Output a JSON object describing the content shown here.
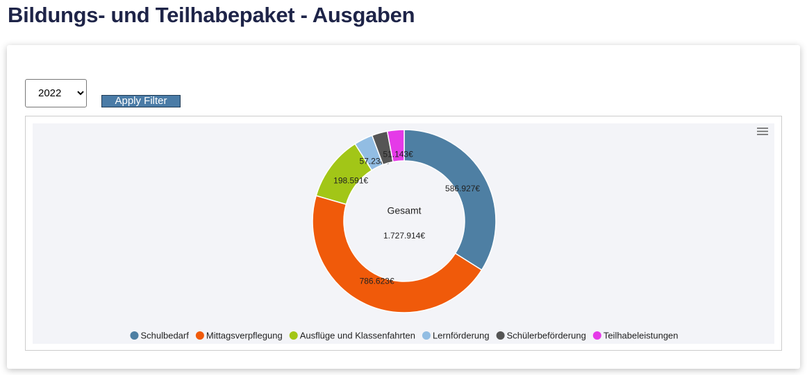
{
  "header": {
    "title": "Bildungs- und Teilhabepaket - Ausgaben"
  },
  "filter": {
    "year": "2022",
    "button": "Apply Filter"
  },
  "chart_data": {
    "type": "donut",
    "categories": [
      "Schulbedarf",
      "Mittagsverpflegung",
      "Ausflüge und Klassenfahrten",
      "Lernförderung",
      "Schülerbeförderung",
      "Teilhabeleistungen"
    ],
    "values": [
      586927,
      786623,
      198591,
      57238,
      47392,
      51143
    ],
    "value_labels": [
      "586.927€",
      "786.623€",
      "198.591€",
      "57.238€",
      null,
      "51.143€"
    ],
    "colors": [
      "#4e7fa3",
      "#f05a0a",
      "#a2c617",
      "#92bde3",
      "#555555",
      "#e53ae8"
    ],
    "total_label": "Gesamt",
    "total": {
      "value": 1727914,
      "label": "1.727.914€"
    },
    "legend": "bottom"
  }
}
